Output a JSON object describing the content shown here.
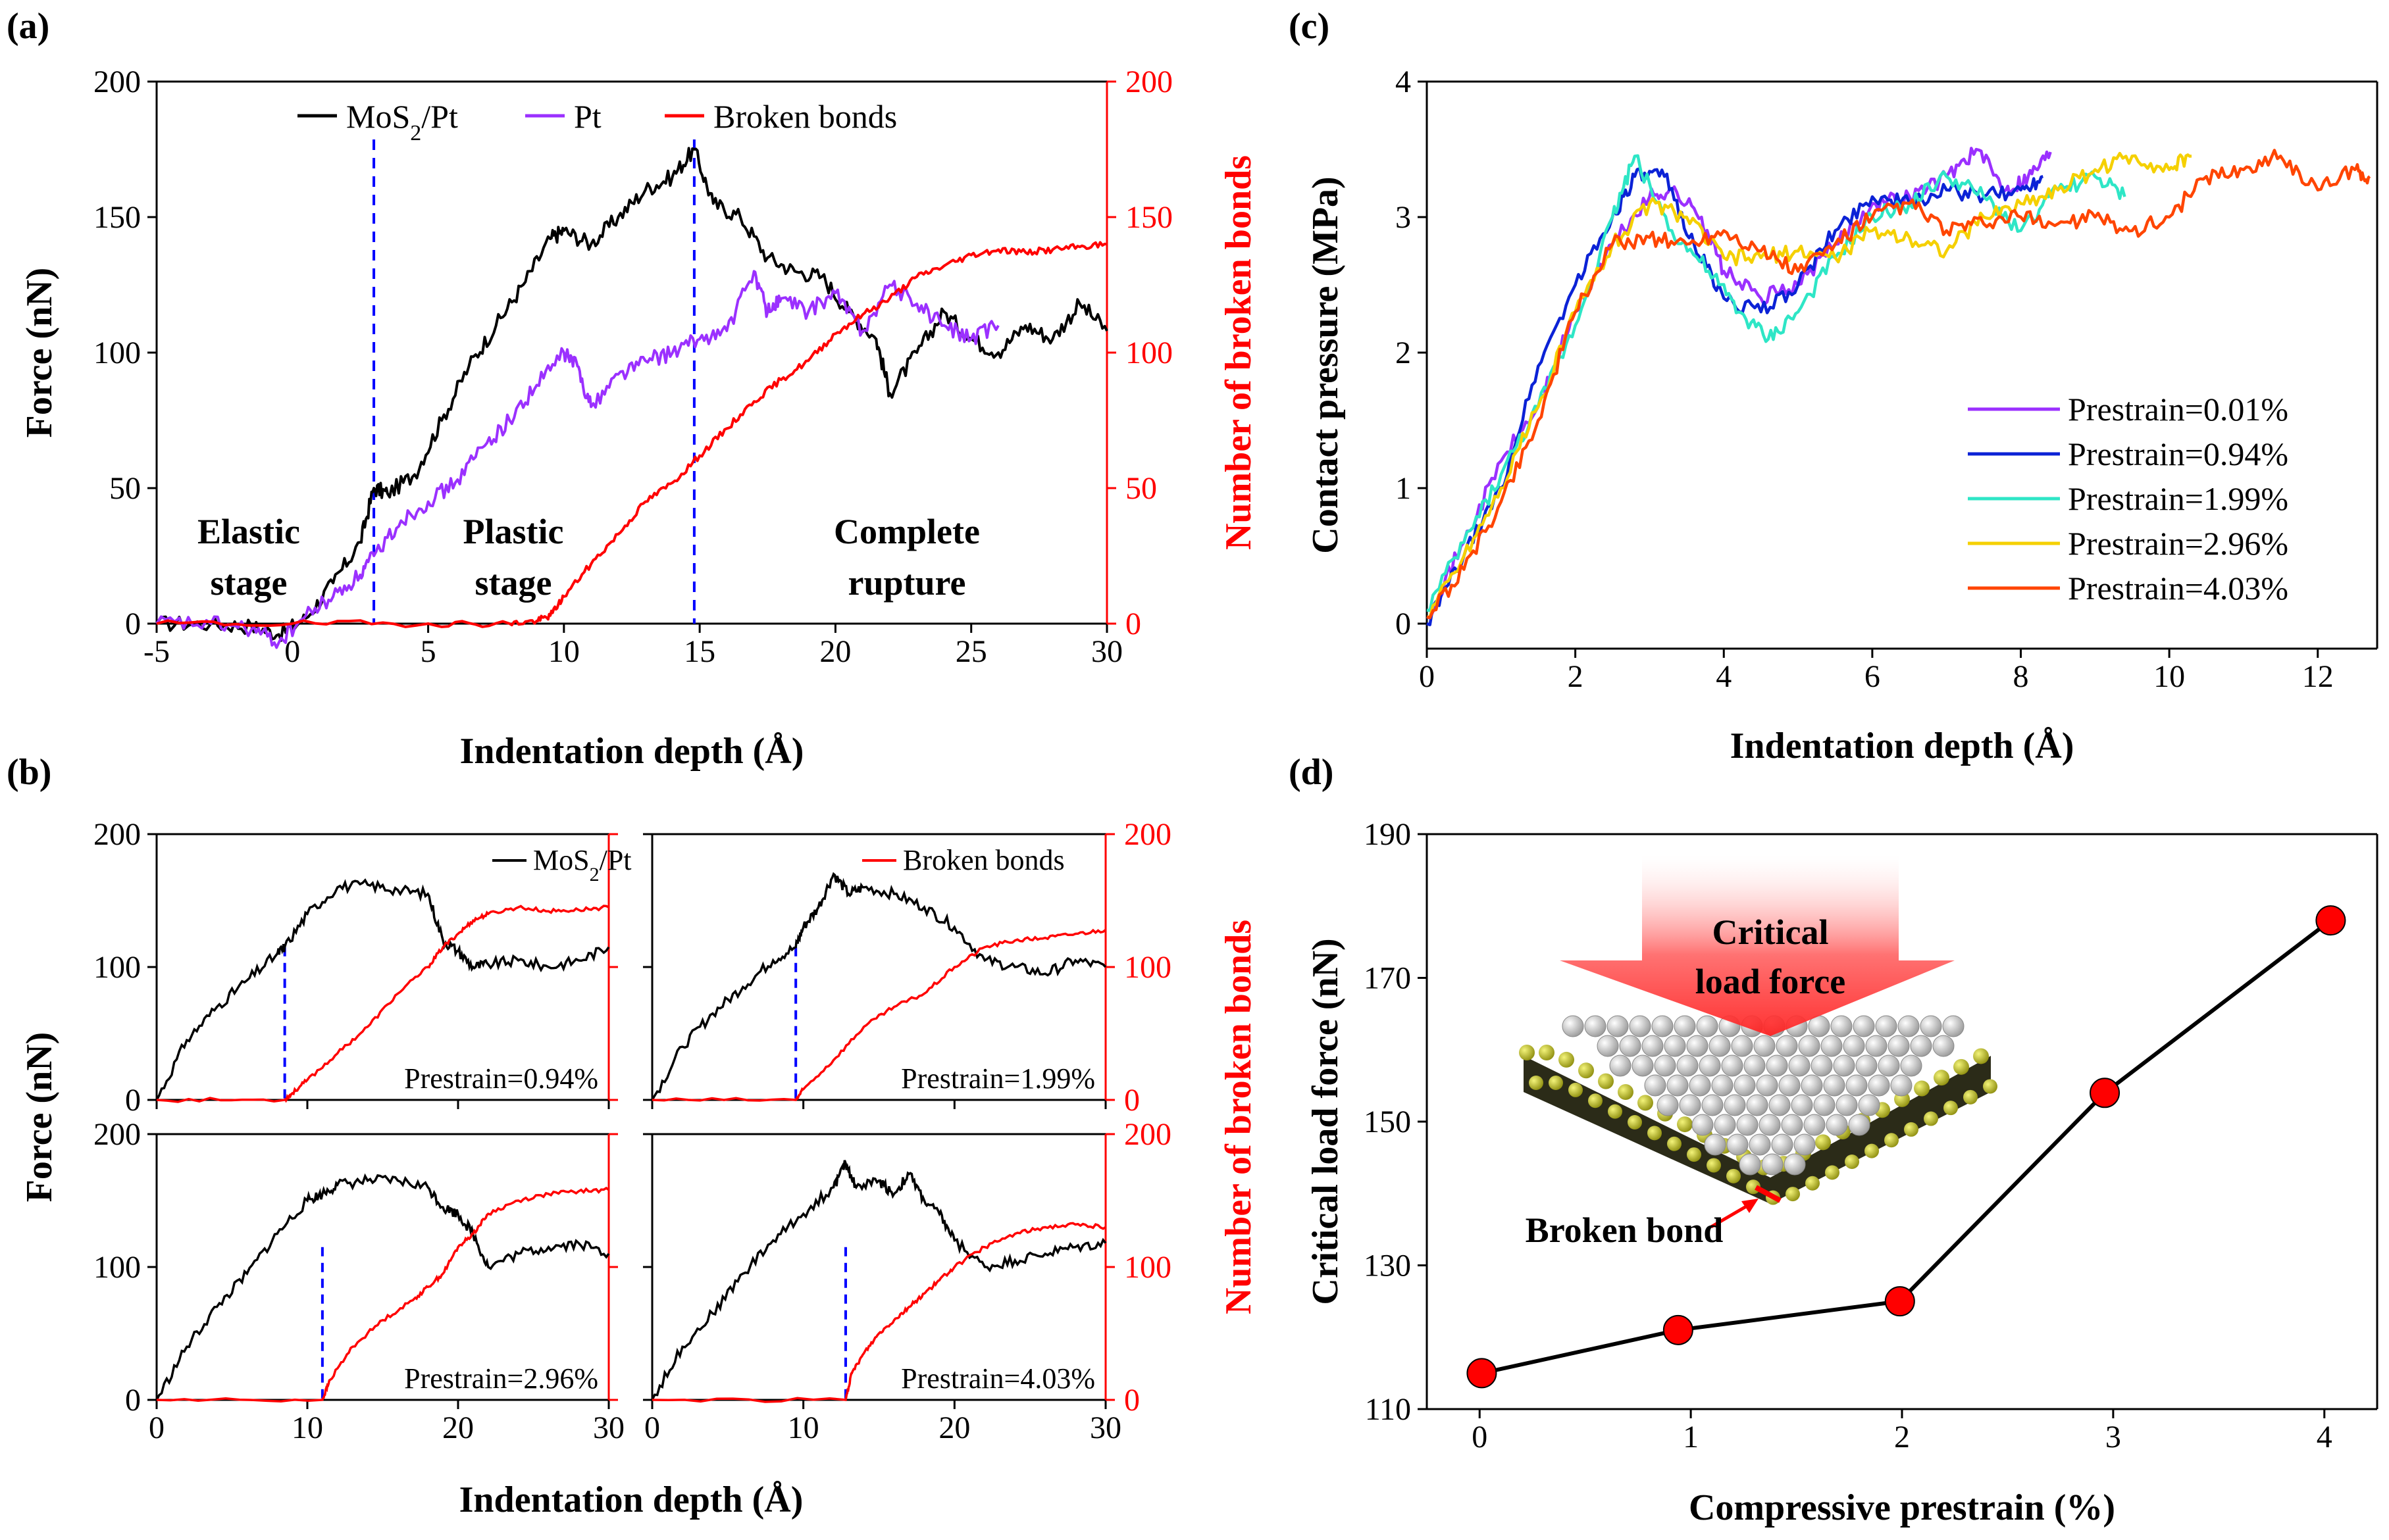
{
  "colors": {
    "mos2": "#000000",
    "pt": "#9b30ff",
    "bonds": "#ff0000",
    "guide": "#0000ff",
    "p001": "#9b30ff",
    "p094": "#0b22d6",
    "p199": "#2ee6c6",
    "p296": "#f5d000",
    "p403": "#ff4500",
    "marker": "#ff0000"
  },
  "chart_data": [
    {
      "id": "a",
      "panel_label": "(a)",
      "type": "line",
      "xlabel": "Indentation depth (Å)",
      "ylabel": "Force (nN)",
      "ylabel_right": "Number of  broken bonds",
      "xlim": [
        -5,
        30
      ],
      "ylim": [
        0,
        200
      ],
      "ylim_right": [
        0,
        200
      ],
      "xticks": [
        "-5",
        "0",
        "5",
        "10",
        "15",
        "20",
        "25",
        "30"
      ],
      "yticks": [
        "0",
        "50",
        "100",
        "150",
        "200"
      ],
      "yticks_right": [
        "0",
        "50",
        "100",
        "150",
        "200"
      ],
      "legend": {
        "mos2": "MoS",
        "mos2_sub": "2",
        "mos2_tail": "/Pt",
        "pt": "Pt",
        "bonds": "Broken bonds",
        "placement": "top"
      },
      "stage_labels": {
        "elastic_1": "Elastic",
        "elastic_2": "stage",
        "plastic_1": "Plastic",
        "plastic_2": "stage",
        "rupture_1": "Complete",
        "rupture_2": "rupture"
      },
      "vlines_x": [
        3.0,
        14.8
      ],
      "series": [
        {
          "name": "MoS2/Pt",
          "axis": "left",
          "x": [
            -5,
            -3,
            -1.5,
            -0.5,
            0.5,
            1.5,
            2.5,
            3,
            3.5,
            4.5,
            5.5,
            6.5,
            7.5,
            8.5,
            9.5,
            10,
            11,
            12,
            13,
            14,
            14.8,
            15.5,
            16.5,
            17.5,
            18.5,
            19.5,
            20.5,
            21.5,
            22,
            23,
            24,
            25,
            26,
            27,
            28,
            29,
            30
          ],
          "y": [
            0,
            0,
            -1,
            -4,
            2,
            15,
            30,
            50,
            48,
            55,
            75,
            95,
            110,
            125,
            142,
            145,
            140,
            150,
            160,
            165,
            175,
            155,
            150,
            135,
            130,
            128,
            115,
            105,
            85,
            100,
            115,
            105,
            100,
            110,
            105,
            118,
            108
          ]
        },
        {
          "name": "Pt",
          "axis": "left",
          "x": [
            -5,
            -3,
            -1.5,
            -0.5,
            0.5,
            1.5,
            2.5,
            3,
            4,
            5,
            6,
            7,
            8,
            9,
            10,
            10.5,
            11,
            12,
            13,
            14,
            15,
            16,
            17,
            17.5,
            18,
            19,
            20,
            21,
            22,
            23,
            24,
            25,
            26
          ],
          "y": [
            0,
            0,
            -2,
            -7,
            3,
            10,
            18,
            25,
            38,
            45,
            52,
            65,
            75,
            88,
            100,
            95,
            80,
            92,
            97,
            100,
            105,
            108,
            130,
            115,
            120,
            115,
            122,
            108,
            125,
            118,
            110,
            105,
            110
          ]
        },
        {
          "name": "Broken bonds",
          "axis": "right",
          "x": [
            -5,
            0,
            5,
            8,
            9,
            9.5,
            10,
            11,
            12,
            13,
            14,
            15,
            16,
            17,
            18,
            19,
            20,
            21,
            22,
            23,
            24,
            25,
            26,
            27,
            28,
            29,
            30
          ],
          "y": [
            0,
            0,
            0,
            0,
            1,
            3,
            10,
            22,
            33,
            45,
            52,
            62,
            72,
            82,
            90,
            97,
            107,
            114,
            120,
            128,
            132,
            136,
            138,
            137,
            138,
            139,
            140
          ]
        }
      ]
    },
    {
      "id": "b",
      "panel_label": "(b)",
      "type": "line",
      "xlabel": "Indentation depth (Å)",
      "ylabel": "Force (nN)",
      "ylabel_right": "Number of  broken bonds",
      "xlim": [
        0,
        30
      ],
      "ylim": [
        0,
        200
      ],
      "ylim_right": [
        0,
        200
      ],
      "xticks": [
        "0",
        "10",
        "20",
        "30"
      ],
      "yticks": [
        "0",
        "100",
        "200"
      ],
      "yticks_right": [
        "0",
        "100",
        "200"
      ],
      "legend": {
        "mos2": "MoS",
        "mos2_sub": "2",
        "mos2_tail": "/Pt",
        "bonds": "Broken bonds"
      },
      "subplots": [
        {
          "label": "Prestrain=0.94%",
          "vline_x": 8.5,
          "force": {
            "x": [
              0,
              2,
              4,
              6,
              8,
              8.5,
              10,
              12,
              14,
              16,
              18,
              19,
              20,
              21,
              22,
              24,
              26,
              28,
              30
            ],
            "y": [
              0,
              45,
              70,
              90,
              110,
              115,
              140,
              160,
              162,
              158,
              155,
              120,
              112,
              100,
              102,
              105,
              100,
              105,
              115
            ]
          },
          "bonds": {
            "x": [
              0,
              8.5,
              9,
              10,
              12,
              14,
              16,
              18,
              19,
              20,
              21,
              22,
              24,
              26,
              28,
              30
            ],
            "y": [
              0,
              0,
              5,
              15,
              35,
              55,
              80,
              100,
              115,
              125,
              135,
              140,
              145,
              142,
              143,
              145
            ]
          }
        },
        {
          "label": "Prestrain=1.99%",
          "vline_x": 9.5,
          "force": {
            "x": [
              0,
              2,
              4,
              6,
              8,
              9.5,
              10,
              11,
              12,
              13,
              14,
              16,
              18,
              20,
              22,
              24,
              26,
              28,
              30
            ],
            "y": [
              0,
              40,
              65,
              85,
              105,
              115,
              130,
              145,
              170,
              155,
              160,
              155,
              145,
              130,
              105,
              100,
              95,
              105,
              100
            ]
          },
          "bonds": {
            "x": [
              0,
              9.5,
              10,
              12,
              14,
              16,
              18,
              20,
              22,
              24,
              26,
              28,
              30
            ],
            "y": [
              0,
              0,
              8,
              30,
              55,
              70,
              80,
              100,
              115,
              120,
              122,
              125,
              128
            ]
          }
        },
        {
          "label": "Prestrain=2.96%",
          "vline_x": 11.0,
          "force": {
            "x": [
              0,
              2,
              4,
              6,
              8,
              10,
              11,
              12,
              14,
              16,
              18,
              19,
              20,
              21,
              22,
              24,
              26,
              28,
              30
            ],
            "y": [
              0,
              40,
              70,
              95,
              125,
              150,
              155,
              162,
              165,
              165,
              160,
              145,
              140,
              125,
              100,
              110,
              115,
              118,
              110
            ]
          },
          "bonds": {
            "x": [
              0,
              11,
              11.5,
              13,
              15,
              17,
              18,
              19,
              20,
              21,
              22,
              24,
              26,
              28,
              30
            ],
            "y": [
              0,
              0,
              15,
              40,
              60,
              75,
              85,
              95,
              115,
              125,
              140,
              150,
              155,
              157,
              158
            ]
          }
        },
        {
          "label": "Prestrain=4.03%",
          "vline_x": 12.8,
          "force": {
            "x": [
              0,
              2,
              4,
              6,
              8,
              10,
              12,
              12.8,
              13.5,
              15,
              16,
              17,
              18,
              19,
              20,
              22,
              24,
              26,
              28,
              30
            ],
            "y": [
              0,
              40,
              65,
              95,
              120,
              140,
              160,
              178,
              160,
              165,
              155,
              170,
              150,
              140,
              120,
              100,
              105,
              110,
              115,
              118
            ]
          },
          "bonds": {
            "x": [
              0,
              12.8,
              13.2,
              14,
              15,
              16,
              17,
              18,
              19,
              20,
              22,
              24,
              26,
              28,
              30
            ],
            "y": [
              0,
              0,
              20,
              35,
              50,
              60,
              70,
              80,
              90,
              100,
              115,
              125,
              130,
              132,
              130
            ]
          }
        }
      ]
    },
    {
      "id": "c",
      "panel_label": "(c)",
      "type": "line",
      "xlabel": "Indentation depth (Å)",
      "ylabel": "Contact pressure (MPa)",
      "xlim": [
        0,
        12.8
      ],
      "ylim": [
        -0.2,
        4
      ],
      "xticks": [
        "0",
        "2",
        "4",
        "6",
        "8",
        "10",
        "12"
      ],
      "yticks": [
        "0",
        "1",
        "2",
        "3",
        "4"
      ],
      "legend_placement": "lower-right",
      "series": [
        {
          "name": "Prestrain=0.01%",
          "key": "p001",
          "x": [
            0,
            0.5,
            1,
            1.5,
            2,
            2.5,
            3,
            3.3,
            3.7,
            4,
            4.5,
            5,
            5.5,
            6,
            6.5,
            7,
            7.4,
            7.8,
            8.1,
            8.4
          ],
          "y": [
            0.05,
            0.6,
            1.2,
            1.6,
            2.3,
            2.8,
            3.15,
            3.2,
            3.0,
            2.6,
            2.4,
            2.5,
            2.8,
            3.1,
            3.15,
            3.3,
            3.5,
            3.2,
            3.3,
            3.48
          ]
        },
        {
          "name": "Prestrain=0.94%",
          "key": "p094",
          "x": [
            0,
            0.5,
            1,
            1.5,
            2,
            2.5,
            2.8,
            3.2,
            3.6,
            4,
            4.5,
            5,
            5.5,
            6,
            6.5,
            7,
            7.5,
            8,
            8.3
          ],
          "y": [
            0,
            0.5,
            1.0,
            1.9,
            2.5,
            3.0,
            3.3,
            3.3,
            2.8,
            2.4,
            2.3,
            2.5,
            2.9,
            3.15,
            3.1,
            3.2,
            3.15,
            3.2,
            3.3
          ]
        },
        {
          "name": "Prestrain=1.99%",
          "key": "p199",
          "x": [
            0,
            0.5,
            1,
            1.5,
            2,
            2.5,
            2.8,
            3.3,
            3.8,
            4.2,
            4.6,
            5,
            5.5,
            6,
            6.5,
            7,
            7.5,
            8,
            8.5,
            9,
            9.4
          ],
          "y": [
            0.1,
            0.6,
            1.1,
            1.6,
            2.2,
            3.0,
            3.45,
            2.9,
            2.6,
            2.3,
            2.1,
            2.3,
            2.7,
            3.0,
            3.1,
            3.3,
            3.15,
            2.9,
            3.2,
            3.3,
            3.15
          ]
        },
        {
          "name": "Prestrain=2.96%",
          "key": "p296",
          "x": [
            0,
            0.5,
            1,
            1.5,
            2,
            2.5,
            3,
            3.5,
            4,
            4.5,
            5,
            5.5,
            6,
            6.5,
            7,
            7.5,
            8,
            8.5,
            9,
            9.5,
            10,
            10.3
          ],
          "y": [
            0.05,
            0.5,
            1.0,
            1.6,
            2.3,
            2.8,
            3.1,
            3.0,
            2.7,
            2.7,
            2.75,
            2.7,
            2.9,
            2.85,
            2.75,
            3.0,
            3.1,
            3.2,
            3.35,
            3.45,
            3.35,
            3.45
          ]
        },
        {
          "name": "Prestrain=4.03%",
          "key": "p403",
          "x": [
            0,
            0.5,
            1,
            1.5,
            2,
            2.5,
            3,
            3.5,
            4,
            4.5,
            5,
            5.5,
            6,
            6.5,
            7,
            7.5,
            8,
            8.5,
            9,
            9.5,
            10,
            10.5,
            11,
            11.5,
            12,
            12.5,
            12.7
          ],
          "y": [
            0.05,
            0.4,
            0.9,
            1.5,
            2.3,
            2.8,
            2.85,
            2.8,
            2.9,
            2.75,
            2.6,
            2.8,
            3.0,
            3.1,
            2.9,
            2.95,
            3.0,
            2.95,
            3.0,
            2.9,
            3.0,
            3.3,
            3.35,
            3.45,
            3.2,
            3.35,
            3.3
          ]
        }
      ]
    },
    {
      "id": "d",
      "panel_label": "(d)",
      "type": "scatter",
      "xlabel": "Compressive prestrain (%)",
      "ylabel": "Critical load force (nN)",
      "xlim": [
        -0.25,
        4.25
      ],
      "ylim": [
        110,
        190
      ],
      "xticks": [
        "0",
        "1",
        "2",
        "3",
        "4"
      ],
      "yticks": [
        "110",
        "130",
        "150",
        "170",
        "190"
      ],
      "x": [
        0.01,
        0.94,
        1.99,
        2.96,
        4.03
      ],
      "y": [
        115,
        121,
        125,
        154,
        178
      ],
      "inset": {
        "arrow_line1": "Critical",
        "arrow_line2": "load force",
        "bond_label": "Broken bond"
      }
    }
  ]
}
